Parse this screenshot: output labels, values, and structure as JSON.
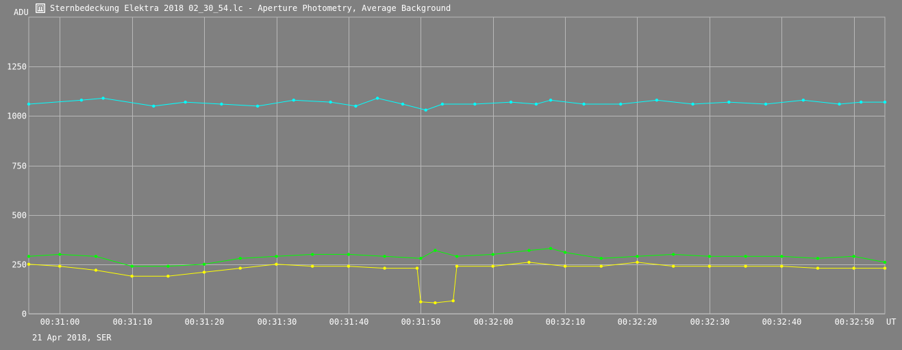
{
  "window": {
    "title": "Sternbedeckung Elektra 2018 02_30_54.lc - Aperture Photometry, Average Background"
  },
  "icons": {
    "app": "photometry-app-icon"
  },
  "colors": {
    "background": "#808080",
    "grid": "#b8b8b8",
    "text": "#ffffff",
    "series_cyan": "#00ffff",
    "series_green": "#00ff00",
    "series_yellow": "#ffff00"
  },
  "chart_data": {
    "type": "line",
    "ylabel": "ADU",
    "xlabel": "UT",
    "date_label": "21 Apr 2018, SER",
    "xlim": [
      "00:30:55.7",
      "00:32:54.3"
    ],
    "ylim": [
      0,
      1500
    ],
    "grid": true,
    "x_ticks": [
      "00:31:00",
      "00:31:10",
      "00:31:20",
      "00:31:30",
      "00:31:40",
      "00:31:50",
      "00:32:00",
      "00:32:10",
      "00:32:20",
      "00:32:30",
      "00:32:40",
      "00:32:50"
    ],
    "y_ticks": [
      0,
      250,
      500,
      750,
      1000,
      1250
    ],
    "series": [
      {
        "color": "#00ffff",
        "x": [
          "00:30:55.7",
          "00:31:03.0",
          "00:31:06.0",
          "00:31:13.0",
          "00:31:17.4",
          "00:31:22.4",
          "00:31:27.4",
          "00:31:32.4",
          "00:31:37.5",
          "00:31:41.0",
          "00:31:44.0",
          "00:31:47.5",
          "00:31:50.7",
          "00:31:53.0",
          "00:31:57.5",
          "00:32:02.5",
          "00:32:06.0",
          "00:32:08.0",
          "00:32:12.6",
          "00:32:17.7",
          "00:32:22.7",
          "00:32:27.7",
          "00:32:32.7",
          "00:32:37.8",
          "00:32:43.0",
          "00:32:48.0",
          "00:32:51.0",
          "00:32:54.3"
        ],
        "values": [
          1060,
          1080,
          1090,
          1050,
          1070,
          1060,
          1050,
          1080,
          1070,
          1050,
          1090,
          1060,
          1030,
          1060,
          1060,
          1070,
          1060,
          1080,
          1060,
          1060,
          1080,
          1060,
          1070,
          1060,
          1080,
          1060,
          1070,
          1070
        ]
      },
      {
        "color": "#00ff00",
        "x": [
          "00:30:55.7",
          "00:31:00.0",
          "00:31:05.0",
          "00:31:10.0",
          "00:31:15.0",
          "00:31:20.0",
          "00:31:25.0",
          "00:31:30.0",
          "00:31:35.0",
          "00:31:40.0",
          "00:31:45.0",
          "00:31:50.0",
          "00:31:52.0",
          "00:31:55.0",
          "00:32:00.0",
          "00:32:05.0",
          "00:32:08.0",
          "00:32:10.0",
          "00:32:15.0",
          "00:32:20.0",
          "00:32:25.0",
          "00:32:30.0",
          "00:32:35.0",
          "00:32:40.0",
          "00:32:45.0",
          "00:32:50.0",
          "00:32:54.3"
        ],
        "values": [
          290,
          300,
          290,
          240,
          240,
          250,
          280,
          290,
          300,
          300,
          290,
          280,
          320,
          290,
          300,
          320,
          330,
          310,
          280,
          290,
          300,
          290,
          290,
          290,
          280,
          290,
          260
        ]
      },
      {
        "color": "#ffff00",
        "x": [
          "00:30:55.7",
          "00:31:00.0",
          "00:31:05.0",
          "00:31:10.0",
          "00:31:15.0",
          "00:31:20.0",
          "00:31:25.0",
          "00:31:30.0",
          "00:31:35.0",
          "00:31:40.0",
          "00:31:45.0",
          "00:31:49.5",
          "00:31:50.0",
          "00:31:52.0",
          "00:31:54.5",
          "00:31:55.0",
          "00:32:00.0",
          "00:32:05.0",
          "00:32:10.0",
          "00:32:15.0",
          "00:32:20.0",
          "00:32:25.0",
          "00:32:30.0",
          "00:32:35.0",
          "00:32:40.0",
          "00:32:45.0",
          "00:32:50.0",
          "00:32:54.3"
        ],
        "values": [
          250,
          240,
          220,
          190,
          190,
          210,
          230,
          250,
          240,
          240,
          230,
          230,
          60,
          55,
          65,
          240,
          240,
          260,
          240,
          240,
          260,
          240,
          240,
          240,
          240,
          230,
          230,
          230
        ]
      }
    ]
  }
}
